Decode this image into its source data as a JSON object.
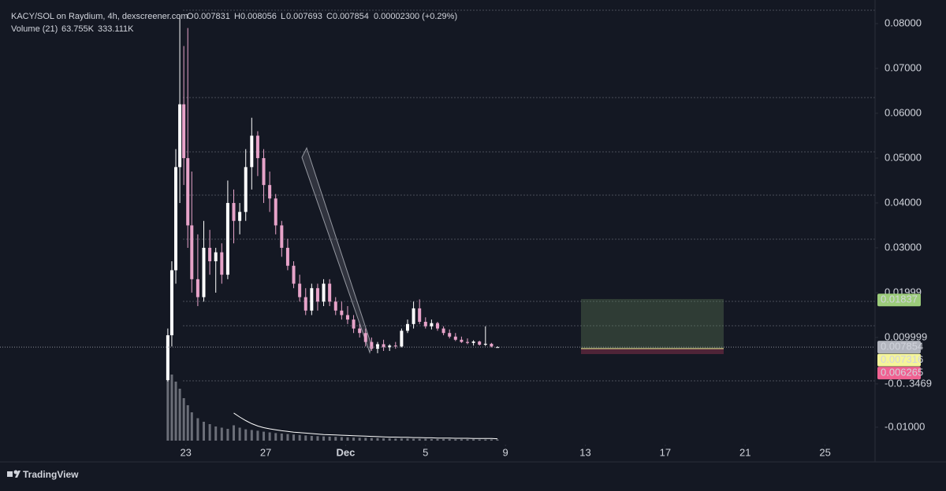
{
  "header": {
    "symbol": "KACY/SOL on Raydium, 4h, dexscreener.com",
    "o_label": "O",
    "open": "0.007831",
    "h_label": "H",
    "high": "0.008056",
    "l_label": "L",
    "low": "0.007693",
    "c_label": "C",
    "close": "0.007854",
    "change": "0.00002300 (+0.29%)",
    "volume_label": "Volume (21)",
    "volume": "63.755K",
    "volume_ma": "333.111K"
  },
  "footer": {
    "brand": "TradingView"
  },
  "chart_data": {
    "type": "candlestick",
    "up_color": "#ffffff",
    "down_color": "#e7a3c9",
    "volume_color": "#6b6e78",
    "x": [
      22.1,
      22.3,
      22.5,
      22.7,
      22.9,
      23.1,
      23.3,
      23.6,
      23.9,
      24.2,
      24.5,
      24.8,
      25.1,
      25.4,
      25.7,
      26.0,
      26.3,
      26.6,
      26.9,
      27.2,
      27.5,
      27.8,
      28.1,
      28.4,
      28.7,
      29.0,
      29.3,
      29.6,
      29.9,
      30.2,
      30.5,
      30.8,
      31.1,
      31.4,
      31.7,
      32.0,
      32.3,
      32.6,
      32.9,
      33.2,
      33.5,
      33.8,
      34.1,
      34.4,
      34.7,
      35.0,
      35.3,
      35.6,
      35.9,
      36.2,
      36.5,
      36.8,
      37.1,
      37.4,
      37.7,
      38.0,
      38.3,
      38.6
    ],
    "open": [
      0.0005,
      0.0105,
      0.025,
      0.048,
      0.062,
      0.05,
      0.035,
      0.023,
      0.019,
      0.03,
      0.027,
      0.029,
      0.024,
      0.04,
      0.036,
      0.038,
      0.048,
      0.055,
      0.05,
      0.044,
      0.041,
      0.035,
      0.03,
      0.026,
      0.022,
      0.019,
      0.016,
      0.021,
      0.018,
      0.022,
      0.018,
      0.016,
      0.015,
      0.014,
      0.012,
      0.011,
      0.009,
      0.0075,
      0.0085,
      0.0078,
      0.0082,
      0.008,
      0.0115,
      0.013,
      0.0165,
      0.0135,
      0.0125,
      0.0132,
      0.012,
      0.011,
      0.0102,
      0.0095,
      0.009,
      0.0088,
      0.0091,
      0.0084,
      0.0086,
      0.007831
    ],
    "high": [
      0.012,
      0.027,
      0.052,
      0.082,
      0.075,
      0.079,
      0.047,
      0.033,
      0.036,
      0.034,
      0.03,
      0.031,
      0.045,
      0.043,
      0.04,
      0.052,
      0.059,
      0.056,
      0.052,
      0.047,
      0.042,
      0.036,
      0.032,
      0.027,
      0.024,
      0.021,
      0.022,
      0.022,
      0.023,
      0.023,
      0.019,
      0.018,
      0.017,
      0.015,
      0.013,
      0.012,
      0.01,
      0.009,
      0.0095,
      0.0085,
      0.009,
      0.012,
      0.014,
      0.018,
      0.0185,
      0.0145,
      0.014,
      0.0135,
      0.0125,
      0.0118,
      0.011,
      0.0102,
      0.0098,
      0.0094,
      0.0093,
      0.0125,
      0.0088,
      0.008056
    ],
    "low": [
      0.0002,
      0.008,
      0.022,
      0.04,
      0.044,
      0.03,
      0.02,
      0.017,
      0.018,
      0.024,
      0.02,
      0.022,
      0.023,
      0.031,
      0.033,
      0.036,
      0.043,
      0.046,
      0.04,
      0.038,
      0.033,
      0.028,
      0.025,
      0.021,
      0.018,
      0.015,
      0.015,
      0.016,
      0.017,
      0.017,
      0.015,
      0.014,
      0.013,
      0.011,
      0.01,
      0.008,
      0.007,
      0.0065,
      0.007,
      0.007,
      0.0075,
      0.0078,
      0.011,
      0.012,
      0.013,
      0.012,
      0.0118,
      0.0115,
      0.0105,
      0.0098,
      0.0092,
      0.0088,
      0.0085,
      0.0082,
      0.0082,
      0.0081,
      0.0078,
      0.007693
    ],
    "close": [
      0.0105,
      0.025,
      0.048,
      0.062,
      0.05,
      0.035,
      0.023,
      0.019,
      0.03,
      0.027,
      0.029,
      0.024,
      0.04,
      0.036,
      0.038,
      0.048,
      0.055,
      0.05,
      0.044,
      0.041,
      0.035,
      0.03,
      0.026,
      0.022,
      0.019,
      0.016,
      0.021,
      0.018,
      0.022,
      0.018,
      0.016,
      0.015,
      0.014,
      0.012,
      0.011,
      0.009,
      0.0075,
      0.0085,
      0.0078,
      0.0082,
      0.008,
      0.0115,
      0.013,
      0.0165,
      0.0135,
      0.0125,
      0.0132,
      0.012,
      0.011,
      0.0102,
      0.0095,
      0.009,
      0.0088,
      0.0091,
      0.0084,
      0.0086,
      0.008,
      0.007854
    ],
    "volume": [
      300,
      280,
      250,
      220,
      180,
      150,
      120,
      95,
      80,
      70,
      60,
      55,
      50,
      65,
      55,
      48,
      45,
      42,
      38,
      35,
      32,
      30,
      28,
      26,
      24,
      22,
      20,
      19,
      18,
      17,
      16,
      15,
      14,
      13,
      12,
      12,
      11,
      11,
      10,
      10,
      9,
      9,
      9,
      8,
      8,
      8,
      7,
      7,
      7,
      7,
      6,
      6,
      6,
      6,
      5,
      5,
      5,
      5
    ],
    "volume_ma": [
      null,
      null,
      null,
      null,
      null,
      null,
      null,
      null,
      null,
      null,
      null,
      null,
      null,
      117,
      100,
      85,
      72,
      62,
      55,
      50,
      46,
      42,
      39,
      36,
      34,
      32,
      30,
      28,
      26,
      25,
      24,
      23,
      22,
      21,
      20,
      19,
      18,
      17,
      16,
      15,
      15,
      14,
      14,
      13,
      13,
      12,
      12,
      11,
      11,
      11,
      10,
      10,
      10,
      9,
      9,
      9,
      9,
      8
    ],
    "xlim": [
      13.7,
      57.5
    ],
    "xticks": [
      23,
      27,
      {
        "value": 31,
        "label": "Dec"
      },
      {
        "value": 35,
        "label": "5"
      },
      {
        "value": 39,
        "label": "9"
      },
      {
        "value": 43,
        "label": "13"
      },
      {
        "value": 47,
        "label": "17"
      },
      {
        "value": 51,
        "label": "21"
      },
      {
        "value": 55,
        "label": "25"
      }
    ],
    "ylim": [
      -0.01335,
      0.08526
    ],
    "yticks": [
      {
        "value": 0.08,
        "label": "0.08000"
      },
      {
        "value": 0.07,
        "label": "0.07000"
      },
      {
        "value": 0.06,
        "label": "0.06000"
      },
      {
        "value": 0.05,
        "label": "0.05000"
      },
      {
        "value": 0.04,
        "label": "0.04000"
      },
      {
        "value": 0.03,
        "label": "0.03000"
      },
      0.01999,
      0.009999,
      {
        "value": -0.0003469,
        "label": "-0.0‥3469"
      },
      {
        "value": -0.01,
        "label": "-0.01000"
      }
    ],
    "price_tags": [
      {
        "value": 0.01837,
        "color": "#9ccc7a"
      },
      {
        "value": 0.007854,
        "color": "#b2b5be"
      },
      {
        "value": 0.007316,
        "color": "#f5f59a"
      },
      {
        "value": 0.006265,
        "color": "#f06292"
      }
    ]
  }
}
